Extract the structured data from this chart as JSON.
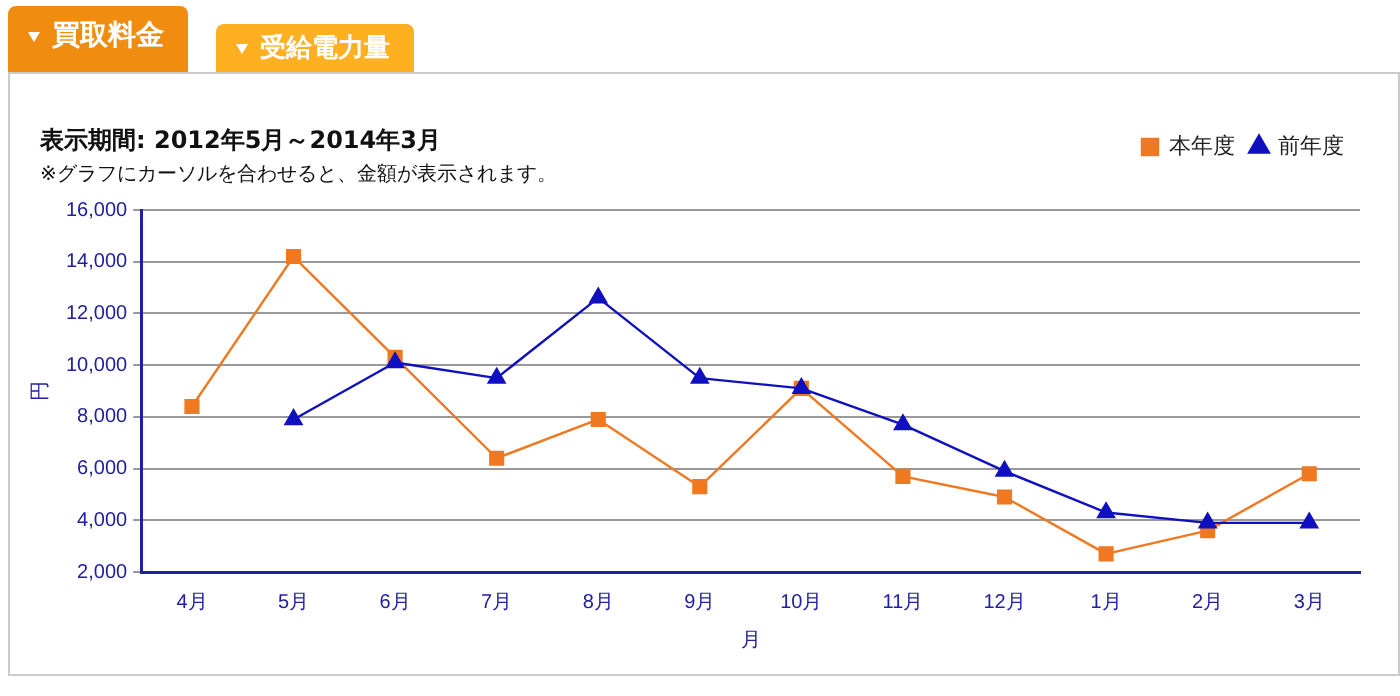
{
  "chart_data": {
    "type": "line",
    "title": "表示期間: 2012年5月～2014年3月",
    "subtitle": "※グラフにカーソルを合わせると、金額が表示されます。",
    "annotations": [
      "買取料金",
      "受給電力量"
    ],
    "xlabel": "月",
    "ylabel": "円",
    "categories": [
      "4月",
      "5月",
      "6月",
      "7月",
      "8月",
      "9月",
      "10月",
      "11月",
      "12月",
      "1月",
      "2月",
      "3月"
    ],
    "series": [
      {
        "name": "本年度",
        "color": "#f07820",
        "marker": "square",
        "values": [
          8400,
          14200,
          10300,
          6400,
          7900,
          5300,
          9100,
          5700,
          4900,
          2700,
          3600,
          5800
        ]
      },
      {
        "name": "前年度",
        "color": "#1010c0",
        "marker": "triangle",
        "values": [
          null,
          7900,
          10100,
          9500,
          12600,
          9500,
          9100,
          7700,
          5900,
          4300,
          3900,
          3900
        ]
      }
    ],
    "ylim": [
      2000,
      16000
    ],
    "yticks": [
      {
        "value": 2000,
        "label": "2,000"
      },
      {
        "value": 4000,
        "label": "4,000"
      },
      {
        "value": 6000,
        "label": "6,000"
      },
      {
        "value": 8000,
        "label": "8,000"
      },
      {
        "value": 10000,
        "label": "10,000"
      },
      {
        "value": 12000,
        "label": "12,000"
      },
      {
        "value": 14000,
        "label": "14,000"
      },
      {
        "value": 16000,
        "label": "16,000"
      }
    ],
    "grid": "y",
    "legend": "top right"
  }
}
